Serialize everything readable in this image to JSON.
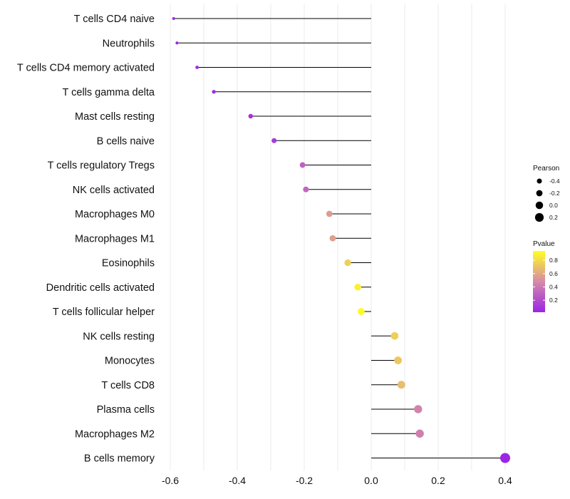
{
  "chart_data": {
    "type": "lollipop",
    "categories": [
      "T cells CD4 naive",
      "Neutrophils",
      "T cells CD4 memory activated",
      "T cells gamma delta",
      "Mast cells resting",
      "B cells naive",
      "T cells regulatory  Tregs ",
      "NK cells activated",
      "Macrophages M0",
      "Macrophages M1",
      "Eosinophils",
      "Dendritic cells activated",
      "T cells follicular helper",
      "NK cells resting",
      "Monocytes",
      "T cells CD8",
      "Plasma cells",
      "Macrophages M2",
      "B cells memory"
    ],
    "values": [
      -0.59,
      -0.58,
      -0.52,
      -0.47,
      -0.36,
      -0.29,
      -0.205,
      -0.195,
      -0.125,
      -0.115,
      -0.07,
      -0.04,
      -0.03,
      0.07,
      0.08,
      0.09,
      0.14,
      0.145,
      0.4
    ],
    "pvalues": [
      0.04,
      0.04,
      0.06,
      0.06,
      0.08,
      0.12,
      0.3,
      0.32,
      0.55,
      0.57,
      0.75,
      0.88,
      0.92,
      0.75,
      0.72,
      0.68,
      0.45,
      0.43,
      0.03
    ],
    "xlim": [
      -0.62,
      0.42
    ],
    "xticks": [
      -0.6,
      -0.4,
      -0.2,
      0.0,
      0.2,
      0.4
    ],
    "xtick_labels": [
      "-0.6",
      "-0.4",
      "-0.2",
      "0.0",
      "0.2",
      "0.4"
    ],
    "xlabel": "",
    "ylabel": "",
    "legend_size": {
      "title": "Pearson",
      "labels": [
        "-0.4",
        "-0.2",
        "0.0",
        "0.2"
      ],
      "values": [
        -0.4,
        -0.2,
        0.0,
        0.2
      ]
    },
    "legend_color": {
      "title": "Pvalue",
      "labels": [
        "0.8",
        "0.6",
        "0.4",
        "0.2"
      ],
      "values": [
        0.8,
        0.6,
        0.4,
        0.2
      ],
      "range": [
        0.02,
        0.94
      ]
    },
    "colors": {
      "low": "#9b24e4",
      "mid": "#d68aa8",
      "high": "#ffff20",
      "stem": "#000000",
      "grid": "#ebebeb"
    }
  }
}
